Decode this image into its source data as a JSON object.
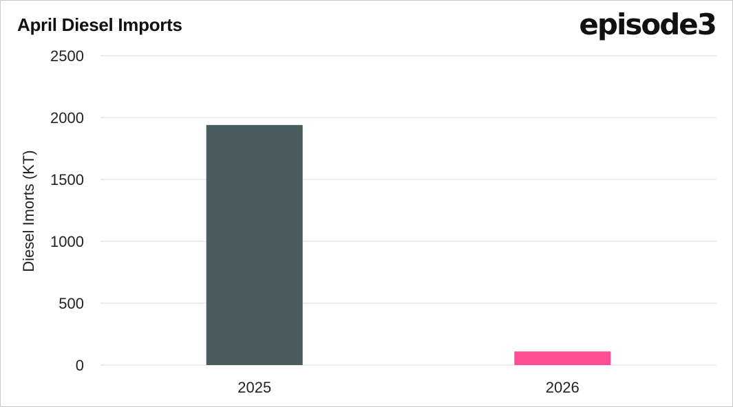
{
  "header": {
    "title": "April Diesel Imports",
    "logo": "episode3"
  },
  "chart_data": {
    "type": "bar",
    "title": "April Diesel Imports",
    "ylabel": "Diesel Imorts (KT)",
    "xlabel": "",
    "categories": [
      "2025",
      "2026"
    ],
    "values": [
      1940,
      110
    ],
    "colors": [
      "#4b5c60",
      "#ff4d96"
    ],
    "ylim": [
      0,
      2500
    ],
    "yticks": [
      0,
      500,
      1000,
      1500,
      2000,
      2500
    ],
    "grid": true
  }
}
